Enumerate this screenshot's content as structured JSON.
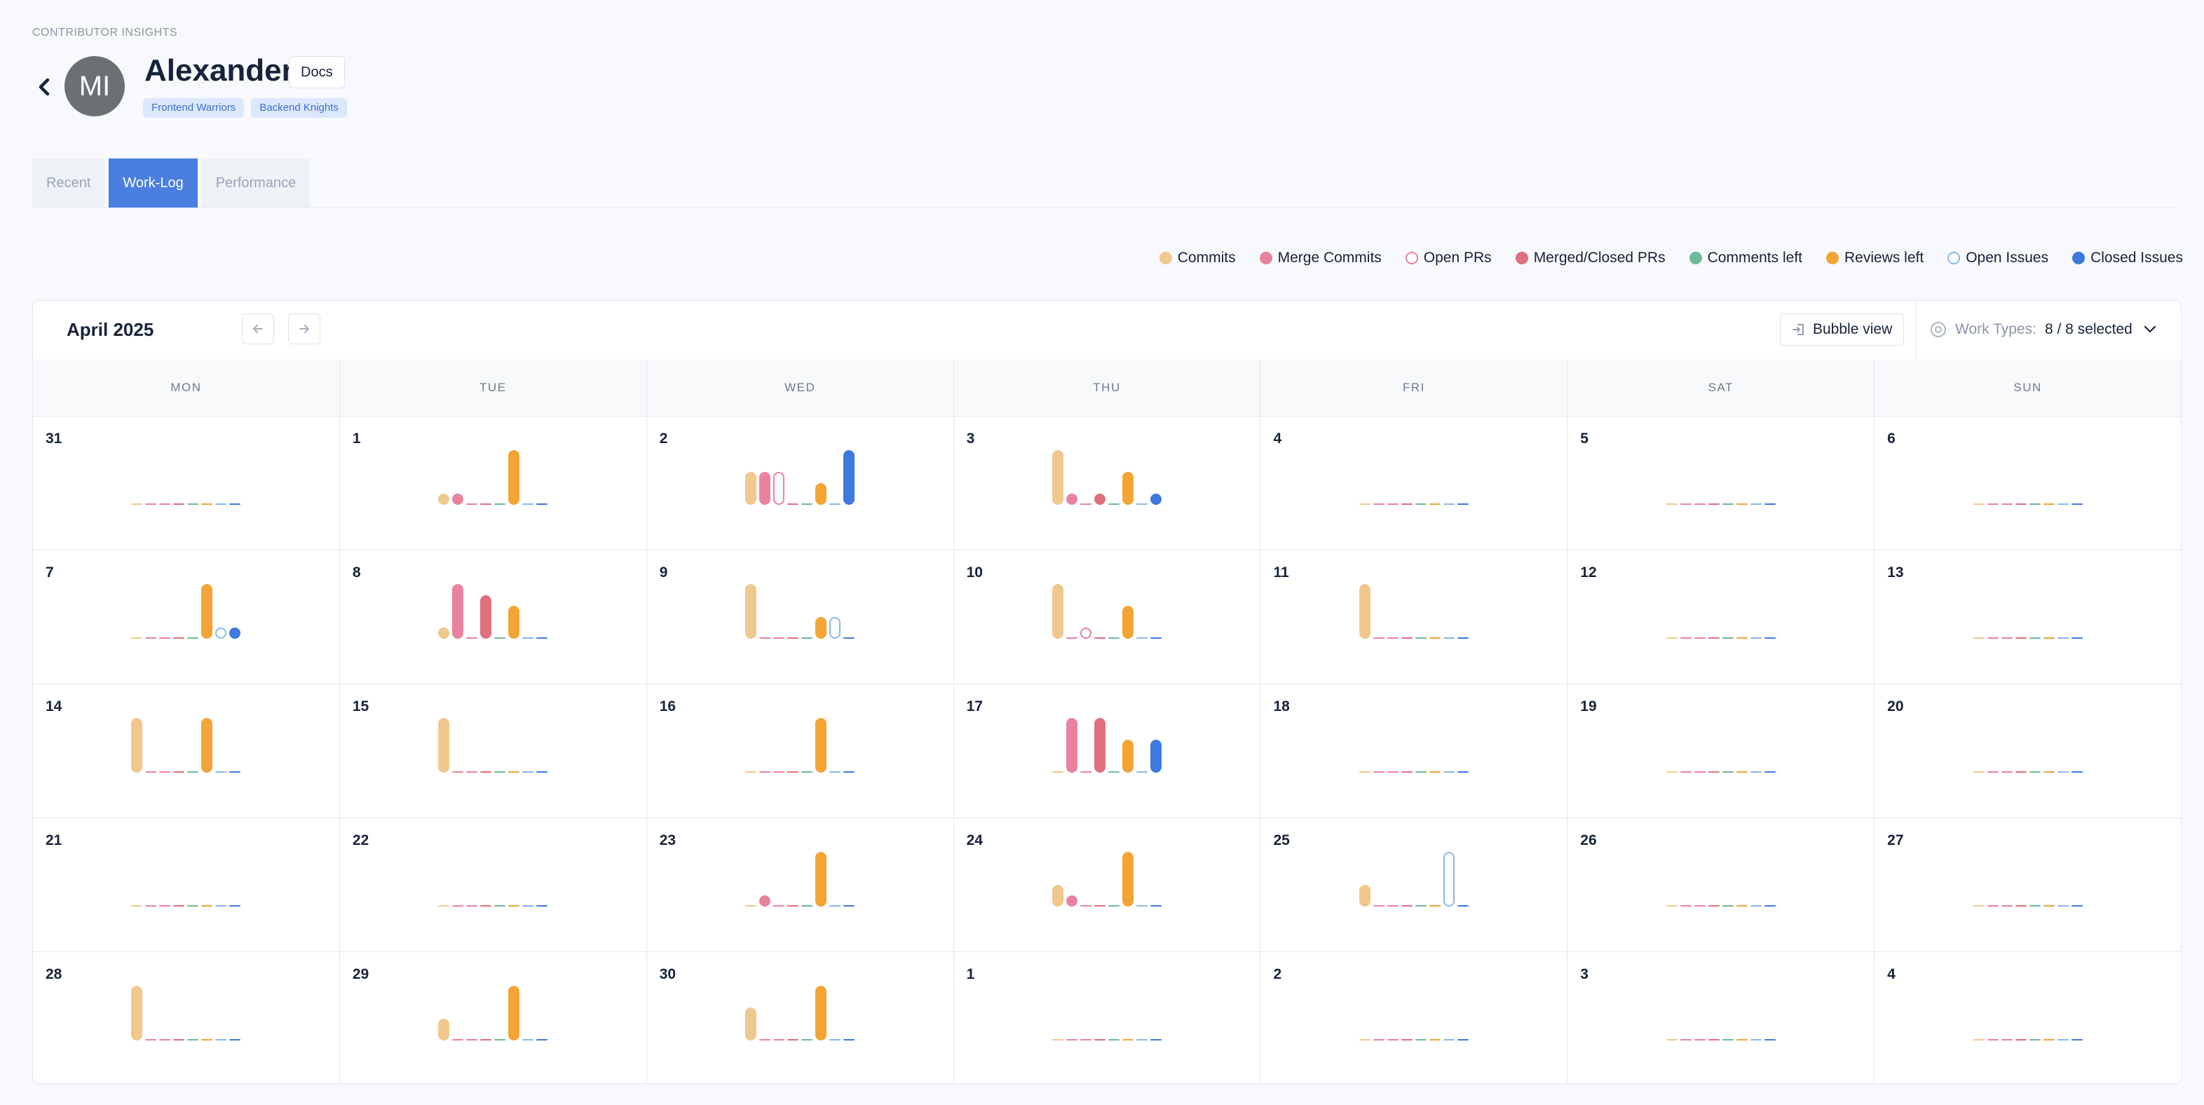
{
  "header": {
    "eyebrow": "CONTRIBUTOR INSIGHTS",
    "avatar_initials": "MI",
    "name": "Alexander",
    "docs_label": "Docs",
    "teams": [
      "Frontend Warriors",
      "Backend Knights"
    ]
  },
  "tabs": [
    {
      "label": "Recent",
      "active": false
    },
    {
      "label": "Work-Log",
      "active": true
    },
    {
      "label": "Performance",
      "active": false
    }
  ],
  "legend": [
    {
      "label": "Commits",
      "color": "#f0c88e",
      "style": "solid"
    },
    {
      "label": "Merge Commits",
      "color": "#e9829e",
      "style": "solid"
    },
    {
      "label": "Open PRs",
      "color": "#e9829e",
      "style": "outline"
    },
    {
      "label": "Merged/Closed PRs",
      "color": "#e06f7d",
      "style": "solid"
    },
    {
      "label": "Comments left",
      "color": "#6fb89a",
      "style": "solid"
    },
    {
      "label": "Reviews left",
      "color": "#f2a534",
      "style": "solid"
    },
    {
      "label": "Open Issues",
      "color": "#8ab8e6",
      "style": "outline"
    },
    {
      "label": "Closed Issues",
      "color": "#3d79de",
      "style": "solid"
    }
  ],
  "calendar": {
    "month_label": "April 2025",
    "prev_icon": "arrow-left-icon",
    "next_icon": "arrow-right-icon",
    "bubble_view_label": "Bubble view",
    "work_types_label": "Work Types:",
    "work_types_value": "8 / 8 selected",
    "weekdays": [
      "MON",
      "TUE",
      "WED",
      "THU",
      "FRI",
      "SAT",
      "SUN"
    ],
    "weeks": [
      [
        {
          "day": "31",
          "v": [
            0,
            0,
            0,
            0,
            0,
            0,
            0,
            0
          ]
        },
        {
          "day": "1",
          "v": [
            1,
            1,
            0,
            0,
            0,
            5,
            0,
            0
          ]
        },
        {
          "day": "2",
          "v": [
            3,
            3,
            3,
            0,
            0,
            2,
            0,
            5
          ]
        },
        {
          "day": "3",
          "v": [
            5,
            1,
            0,
            1,
            0,
            3,
            0,
            1
          ]
        },
        {
          "day": "4",
          "v": [
            0,
            0,
            0,
            0,
            0,
            0,
            0,
            0
          ]
        },
        {
          "day": "5",
          "v": [
            0,
            0,
            0,
            0,
            0,
            0,
            0,
            0
          ]
        },
        {
          "day": "6",
          "v": [
            0,
            0,
            0,
            0,
            0,
            0,
            0,
            0
          ]
        }
      ],
      [
        {
          "day": "7",
          "v": [
            0,
            0,
            0,
            0,
            0,
            5,
            1,
            1
          ]
        },
        {
          "day": "8",
          "v": [
            1,
            5,
            0,
            4,
            0,
            3,
            0,
            0
          ]
        },
        {
          "day": "9",
          "v": [
            5,
            0,
            0,
            0,
            0,
            2,
            2,
            0
          ]
        },
        {
          "day": "10",
          "v": [
            5,
            0,
            1,
            0,
            0,
            3,
            0,
            0
          ]
        },
        {
          "day": "11",
          "v": [
            5,
            0,
            0,
            0,
            0,
            0,
            0,
            0
          ]
        },
        {
          "day": "12",
          "v": [
            0,
            0,
            0,
            0,
            0,
            0,
            0,
            0
          ]
        },
        {
          "day": "13",
          "v": [
            0,
            0,
            0,
            0,
            0,
            0,
            0,
            0
          ]
        }
      ],
      [
        {
          "day": "14",
          "v": [
            5,
            0,
            0,
            0,
            0,
            5,
            0,
            0
          ]
        },
        {
          "day": "15",
          "v": [
            5,
            0,
            0,
            0,
            0,
            0,
            0,
            0
          ]
        },
        {
          "day": "16",
          "v": [
            0,
            0,
            0,
            0,
            0,
            5,
            0,
            0
          ]
        },
        {
          "day": "17",
          "v": [
            0,
            5,
            0,
            5,
            0,
            3,
            0,
            3
          ]
        },
        {
          "day": "18",
          "v": [
            0,
            0,
            0,
            0,
            0,
            0,
            0,
            0
          ]
        },
        {
          "day": "19",
          "v": [
            0,
            0,
            0,
            0,
            0,
            0,
            0,
            0
          ]
        },
        {
          "day": "20",
          "v": [
            0,
            0,
            0,
            0,
            0,
            0,
            0,
            0
          ]
        }
      ],
      [
        {
          "day": "21",
          "v": [
            0,
            0,
            0,
            0,
            0,
            0,
            0,
            0
          ]
        },
        {
          "day": "22",
          "v": [
            0,
            0,
            0,
            0,
            0,
            0,
            0,
            0
          ]
        },
        {
          "day": "23",
          "v": [
            0,
            1,
            0,
            0,
            0,
            5,
            0,
            0
          ]
        },
        {
          "day": "24",
          "v": [
            2,
            1,
            0,
            0,
            0,
            5,
            0,
            0
          ]
        },
        {
          "day": "25",
          "v": [
            2,
            0,
            0,
            0,
            0,
            0,
            5,
            0
          ]
        },
        {
          "day": "26",
          "v": [
            0,
            0,
            0,
            0,
            0,
            0,
            0,
            0
          ]
        },
        {
          "day": "27",
          "v": [
            0,
            0,
            0,
            0,
            0,
            0,
            0,
            0
          ]
        }
      ],
      [
        {
          "day": "28",
          "v": [
            5,
            0,
            0,
            0,
            0,
            0,
            0,
            0
          ]
        },
        {
          "day": "29",
          "v": [
            2,
            0,
            0,
            0,
            0,
            5,
            0,
            0
          ]
        },
        {
          "day": "30",
          "v": [
            3,
            0,
            0,
            0,
            0,
            5,
            0,
            0
          ]
        },
        {
          "day": "1",
          "v": [
            0,
            0,
            0,
            0,
            0,
            0,
            0,
            0
          ]
        },
        {
          "day": "2",
          "v": [
            0,
            0,
            0,
            0,
            0,
            0,
            0,
            0
          ]
        },
        {
          "day": "3",
          "v": [
            0,
            0,
            0,
            0,
            0,
            0,
            0,
            0
          ]
        },
        {
          "day": "4",
          "v": [
            0,
            0,
            0,
            0,
            0,
            0,
            0,
            0
          ]
        }
      ]
    ]
  }
}
